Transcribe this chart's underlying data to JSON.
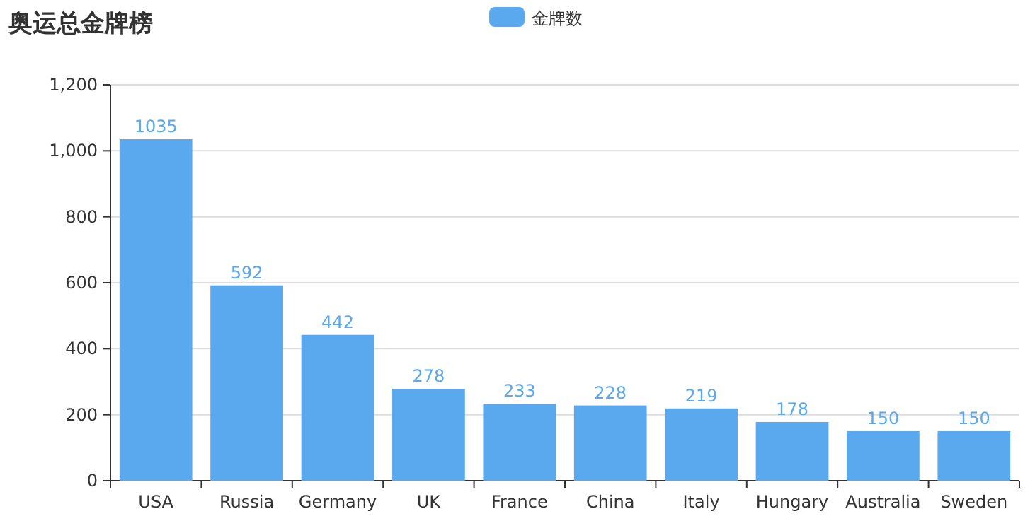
{
  "chart_data": {
    "type": "bar",
    "title": "奥运总金牌榜",
    "categories": [
      "USA",
      "Russia",
      "Germany",
      "UK",
      "France",
      "China",
      "Italy",
      "Hungary",
      "Australia",
      "Sweden"
    ],
    "series": [
      {
        "name": "金牌数",
        "color": "#5aa8ee",
        "values": [
          1035,
          592,
          442,
          278,
          233,
          228,
          219,
          178,
          150,
          150
        ]
      }
    ],
    "ylim": [
      0,
      1200
    ],
    "yticks": [
      0,
      200,
      400,
      600,
      800,
      {
        "value": 1000,
        "label": "1,000"
      },
      {
        "value": 1200,
        "label": "1,200"
      }
    ],
    "grid": "y",
    "legend": "top",
    "data_labels": true
  }
}
